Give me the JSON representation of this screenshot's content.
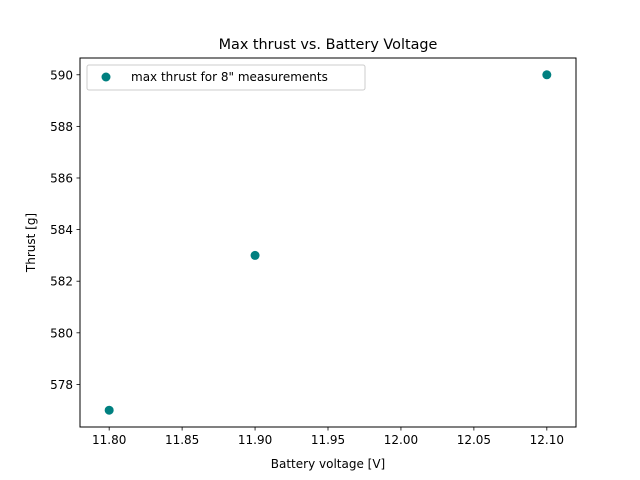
{
  "chart_data": {
    "type": "scatter",
    "title": "Max thrust vs. Battery Voltage",
    "xlabel": "Battery voltage [V]",
    "ylabel": "Thrust [g]",
    "xlim": [
      11.78,
      12.12
    ],
    "ylim": [
      576.35,
      590.65
    ],
    "xticks": [
      11.8,
      11.85,
      11.9,
      11.95,
      12.0,
      12.05,
      12.1
    ],
    "xtick_labels": [
      "11.80",
      "11.85",
      "11.90",
      "11.95",
      "12.00",
      "12.05",
      "12.10"
    ],
    "yticks": [
      578,
      580,
      582,
      584,
      586,
      588,
      590
    ],
    "ytick_labels": [
      "578",
      "580",
      "582",
      "584",
      "586",
      "588",
      "590"
    ],
    "grid": false,
    "legend_position": "top-left",
    "series": [
      {
        "name": "max thrust for 8\" measurements",
        "color": "#008080",
        "marker": "circle",
        "x": [
          11.8,
          11.9,
          12.1
        ],
        "y": [
          577,
          583,
          590
        ]
      }
    ]
  }
}
